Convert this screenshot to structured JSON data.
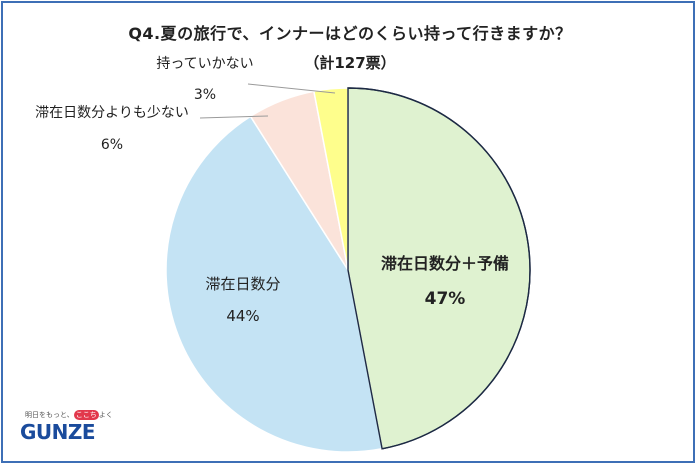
{
  "title": "Q4.夏の旅行で、インナーはどのくらい持って行きますか？",
  "subtitle": "（計127票）",
  "brand": {
    "tagline_pre": "明日をもっと、",
    "tagline_highlight": "ここち",
    "tagline_post": "よく",
    "wordmark": "GUNZE",
    "accent": "#e2384c",
    "brand_color": "#1a4b9c"
  },
  "chart_data": {
    "type": "pie",
    "title": "Q4.夏の旅行で、インナーはどのくらい持って行きますか？",
    "subtitle": "（計127票）",
    "start": "12 o'clock",
    "direction": "clockwise",
    "series": [
      {
        "name": "滞在日数分＋予備",
        "value": 47,
        "label": "47%",
        "color": "#dff2d0"
      },
      {
        "name": "滞在日数分",
        "value": 44,
        "label": "44%",
        "color": "#c4e3f4"
      },
      {
        "name": "滞在日数分よりも少ない",
        "value": 6,
        "label": "6%",
        "color": "#fbe3da"
      },
      {
        "name": "持っていかない",
        "value": 3,
        "label": "3%",
        "color": "#fefe8c"
      }
    ]
  }
}
